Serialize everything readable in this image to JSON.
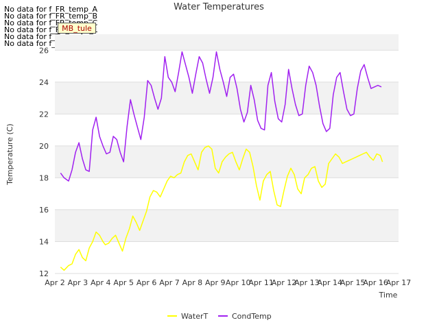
{
  "nodata_messages": [
    "No data for f_FR_temp_A",
    "No data for f_FR_temp_B",
    "No data for f_FR_temp_C",
    "No data for f_FD_Temp_1",
    "No data for f_Temp_A",
    "No data for f_WaterTemp_CTD"
  ],
  "badge_label": "MB_tule",
  "chart_data": {
    "type": "line",
    "title": "Water Temperatures",
    "xlabel": "Time",
    "ylabel": "Temperature (C)",
    "x_ticks": [
      "Apr 2",
      "Apr 3",
      "Apr 4",
      "Apr 5",
      "Apr 6",
      "Apr 7",
      "Apr 8",
      "Apr 9",
      "Apr 10",
      "Apr 11",
      "Apr 12",
      "Apr 13",
      "Apr 14",
      "Apr 15",
      "Apr 16",
      "Apr 17"
    ],
    "xlim": [
      0,
      15
    ],
    "ylim": [
      12,
      27
    ],
    "y_ticks": [
      12,
      14,
      16,
      18,
      20,
      22,
      24,
      26
    ],
    "grid": true,
    "legend_position": "bottom-center",
    "series": [
      {
        "name": "WaterT",
        "color": "#ffff00",
        "x": [
          0.25,
          0.4,
          0.6,
          0.75,
          0.9,
          1.05,
          1.2,
          1.35,
          1.5,
          1.65,
          1.8,
          1.95,
          2.1,
          2.2,
          2.35,
          2.5,
          2.65,
          2.8,
          2.95,
          3.1,
          3.25,
          3.4,
          3.55,
          3.7,
          3.85,
          4.0,
          4.15,
          4.3,
          4.45,
          4.6,
          4.75,
          4.9,
          5.05,
          5.2,
          5.35,
          5.5,
          5.65,
          5.8,
          5.95,
          6.1,
          6.25,
          6.4,
          6.55,
          6.7,
          6.85,
          7.0,
          7.15,
          7.3,
          7.45,
          7.6,
          7.75,
          7.9,
          8.05,
          8.2,
          8.35,
          8.5,
          8.65,
          8.8,
          8.95,
          9.1,
          9.25,
          9.4,
          9.55,
          9.7,
          9.85,
          10.0,
          10.15,
          10.3,
          10.45,
          10.6,
          10.75,
          10.9,
          11.05,
          11.2,
          11.35,
          11.5,
          11.65,
          11.8,
          11.95,
          12.1,
          12.25,
          12.4,
          12.55,
          12.7,
          12.85,
          13.0,
          13.15,
          13.3,
          13.45,
          13.6,
          13.75,
          13.9,
          14.05,
          14.2,
          14.3
        ],
        "values": [
          12.4,
          12.2,
          12.5,
          12.6,
          13.2,
          13.5,
          13.0,
          12.8,
          13.6,
          14.0,
          14.6,
          14.4,
          14.0,
          13.8,
          13.9,
          14.2,
          14.4,
          13.9,
          13.4,
          14.2,
          14.8,
          15.6,
          15.2,
          14.7,
          15.3,
          15.9,
          16.8,
          17.2,
          17.1,
          16.8,
          17.3,
          17.8,
          18.1,
          18.0,
          18.2,
          18.3,
          19.0,
          19.4,
          19.5,
          19.0,
          18.5,
          19.6,
          19.9,
          20.0,
          19.8,
          18.6,
          18.3,
          19.0,
          19.3,
          19.5,
          19.6,
          19.0,
          18.5,
          19.2,
          19.8,
          19.6,
          18.7,
          17.5,
          16.6,
          17.8,
          18.2,
          18.4,
          17.2,
          16.3,
          16.2,
          17.2,
          18.1,
          18.6,
          18.2,
          17.3,
          17.0,
          18.0,
          18.2,
          18.6,
          18.7,
          17.8,
          17.4,
          17.6,
          18.9,
          19.2,
          19.5,
          19.3,
          18.9,
          19.0,
          19.1,
          19.2,
          19.3,
          19.4,
          19.5,
          19.6,
          19.3,
          19.1,
          19.5,
          19.4,
          19.0
        ],
        "plot_upto": 14.3
      },
      {
        "name": "CondTemp",
        "color": "#a020f0",
        "x": [
          0.25,
          0.4,
          0.6,
          0.75,
          0.9,
          1.05,
          1.2,
          1.35,
          1.5,
          1.65,
          1.8,
          1.95,
          2.1,
          2.25,
          2.4,
          2.55,
          2.7,
          2.85,
          3.0,
          3.15,
          3.3,
          3.45,
          3.6,
          3.75,
          3.9,
          4.05,
          4.2,
          4.35,
          4.5,
          4.65,
          4.8,
          4.95,
          5.1,
          5.25,
          5.4,
          5.55,
          5.7,
          5.85,
          6.0,
          6.15,
          6.3,
          6.45,
          6.6,
          6.75,
          6.9,
          7.05,
          7.2,
          7.35,
          7.5,
          7.65,
          7.8,
          7.95,
          8.1,
          8.25,
          8.4,
          8.55,
          8.7,
          8.85,
          9.0,
          9.15,
          9.3,
          9.45,
          9.6,
          9.75,
          9.9,
          10.05,
          10.2,
          10.35,
          10.5,
          10.65,
          10.8,
          10.95,
          11.1,
          11.25,
          11.4,
          11.55,
          11.7,
          11.85,
          12.0,
          12.15,
          12.3,
          12.45,
          12.6,
          12.75,
          12.9,
          13.05,
          13.2,
          13.35,
          13.5,
          13.65,
          13.8,
          13.95,
          14.1,
          14.25
        ],
        "values": [
          18.3,
          18.0,
          17.8,
          18.5,
          19.6,
          20.2,
          19.2,
          18.5,
          18.4,
          21.0,
          21.8,
          20.6,
          20.0,
          19.5,
          19.6,
          20.6,
          20.4,
          19.6,
          19.0,
          21.2,
          22.9,
          22.0,
          21.2,
          20.4,
          21.8,
          24.1,
          23.8,
          23.0,
          22.3,
          23.0,
          25.6,
          24.3,
          24.0,
          23.4,
          24.6,
          25.9,
          25.1,
          24.3,
          23.3,
          24.5,
          25.6,
          25.2,
          24.2,
          23.3,
          24.3,
          25.9,
          24.8,
          24.0,
          23.1,
          24.3,
          24.5,
          23.6,
          22.3,
          21.5,
          22.1,
          23.8,
          22.9,
          21.6,
          21.1,
          21.0,
          23.8,
          24.6,
          22.8,
          21.7,
          21.5,
          22.6,
          24.8,
          23.6,
          22.6,
          21.9,
          22.0,
          23.8,
          25.0,
          24.6,
          23.8,
          22.5,
          21.4,
          20.9,
          21.1,
          23.2,
          24.3,
          24.6,
          23.4,
          22.3,
          21.9,
          22.0,
          23.6,
          24.7,
          25.1,
          24.3,
          23.6,
          23.7,
          23.8,
          23.7
        ],
        "plot_upto": 14.3
      }
    ]
  }
}
